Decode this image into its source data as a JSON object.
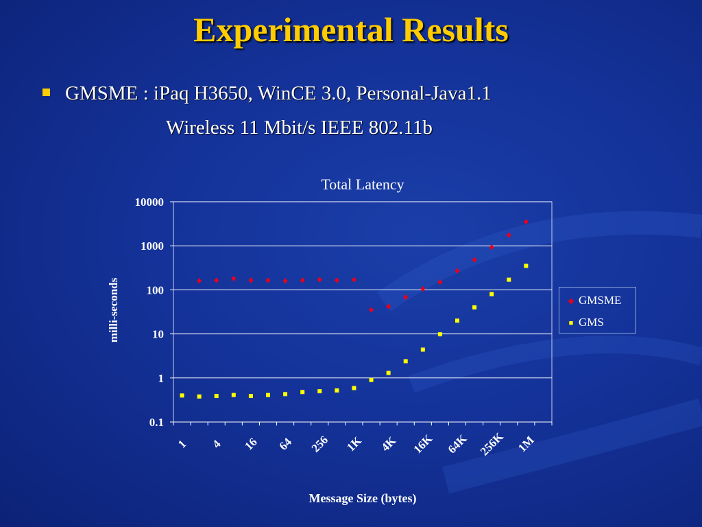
{
  "slide": {
    "title": "Experimental Results",
    "bullet": "GMSME : iPaq H3650, WinCE 3.0, Personal-Java1.1",
    "subline": "Wireless 11 Mbit/s IEEE 802.11b"
  },
  "colors": {
    "title": "#ffcc00",
    "gmsme": "#e8001c",
    "gms": "#ffff00",
    "bullet": "#ffcc00"
  },
  "chart_data": {
    "type": "scatter",
    "title": "Total Latency",
    "xlabel": "Message Size (bytes)",
    "ylabel": "milli-seconds",
    "yscale": "log",
    "ylim": [
      0.1,
      10000
    ],
    "yticks": [
      "10000",
      "1000",
      "100",
      "10",
      "1",
      "0.1"
    ],
    "xscale": "log2",
    "x": [
      1,
      2,
      4,
      8,
      16,
      32,
      64,
      128,
      256,
      512,
      1024,
      2048,
      4096,
      8192,
      16384,
      32768,
      65536,
      131072,
      262144,
      524288,
      1048576,
      2097152
    ],
    "xtick_labels": [
      "1",
      "4",
      "16",
      "64",
      "256",
      "1K",
      "4K",
      "16K",
      "64K",
      "256K",
      "1M"
    ],
    "legend_position": "right",
    "grid": "horizontal",
    "series": [
      {
        "name": "GMSME",
        "marker": "diamond",
        "values": [
          null,
          160,
          165,
          180,
          165,
          165,
          160,
          165,
          170,
          165,
          170,
          35,
          42,
          68,
          105,
          150,
          270,
          480,
          930,
          1750,
          3500,
          null
        ]
      },
      {
        "name": "GMS",
        "marker": "square",
        "values": [
          0.4,
          0.38,
          0.39,
          0.41,
          0.39,
          0.41,
          0.43,
          0.48,
          0.5,
          0.52,
          0.59,
          0.9,
          1.3,
          2.4,
          4.4,
          9.8,
          20,
          40,
          80,
          170,
          350,
          null
        ]
      }
    ]
  }
}
